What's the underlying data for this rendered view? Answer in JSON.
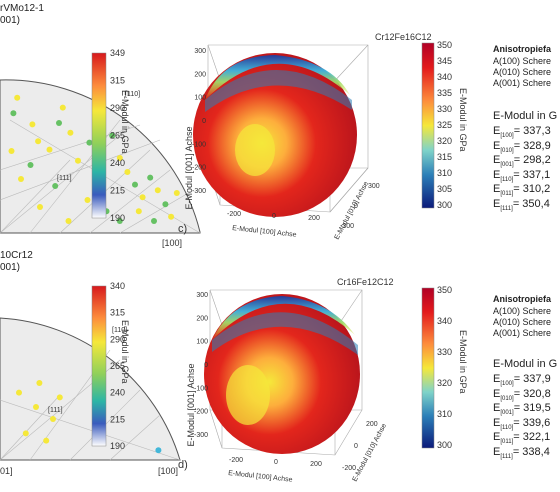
{
  "colors": {
    "red": "#d7191c",
    "orange": "#fdae61",
    "yellow": "#f5e83a",
    "green": "#66c164",
    "cyan": "#43b7d9",
    "blue": "#2b3aa8",
    "navy": "#141c7a",
    "gray": "#e9e9e9",
    "line": "#555555"
  },
  "chart_data": [
    {
      "type": "scatter",
      "panel": "top-left",
      "title_lines": [
        "rVMo12-1",
        "001)"
      ],
      "pole_labels": [
        "[110]",
        "[111]"
      ],
      "axis_labels": [
        "[100]"
      ],
      "colorbar": {
        "label": "E-Modul in GPa",
        "ticks": [
          349,
          315,
          290,
          265,
          240,
          215,
          190
        ],
        "range": [
          190,
          349
        ]
      },
      "points": [
        {
          "x": 0.06,
          "y": 0.82,
          "c": "green"
        },
        {
          "x": 0.08,
          "y": 0.93,
          "c": "yellow"
        },
        {
          "x": 0.16,
          "y": 0.74,
          "c": "yellow"
        },
        {
          "x": 0.19,
          "y": 0.62,
          "c": "yellow"
        },
        {
          "x": 0.25,
          "y": 0.56,
          "c": "yellow"
        },
        {
          "x": 0.32,
          "y": 0.86,
          "c": "yellow"
        },
        {
          "x": 0.36,
          "y": 0.68,
          "c": "yellow"
        },
        {
          "x": 0.4,
          "y": 0.48,
          "c": "yellow"
        },
        {
          "x": 0.46,
          "y": 0.61,
          "c": "green"
        },
        {
          "x": 0.52,
          "y": 0.77,
          "c": "green"
        },
        {
          "x": 0.58,
          "y": 0.66,
          "c": "green"
        },
        {
          "x": 0.62,
          "y": 0.5,
          "c": "yellow"
        },
        {
          "x": 0.66,
          "y": 0.4,
          "c": "yellow"
        },
        {
          "x": 0.7,
          "y": 0.31,
          "c": "green"
        },
        {
          "x": 0.74,
          "y": 0.22,
          "c": "yellow"
        },
        {
          "x": 0.78,
          "y": 0.36,
          "c": "green"
        },
        {
          "x": 0.82,
          "y": 0.27,
          "c": "yellow"
        },
        {
          "x": 0.86,
          "y": 0.17,
          "c": "green"
        },
        {
          "x": 0.89,
          "y": 0.08,
          "c": "yellow"
        },
        {
          "x": 0.92,
          "y": 0.25,
          "c": "yellow"
        },
        {
          "x": 0.1,
          "y": 0.35,
          "c": "yellow"
        },
        {
          "x": 0.28,
          "y": 0.3,
          "c": "green"
        },
        {
          "x": 0.45,
          "y": 0.2,
          "c": "yellow"
        },
        {
          "x": 0.55,
          "y": 0.12,
          "c": "green"
        },
        {
          "x": 0.2,
          "y": 0.15,
          "c": "yellow"
        },
        {
          "x": 0.35,
          "y": 0.05,
          "c": "yellow"
        },
        {
          "x": 0.62,
          "y": 0.05,
          "c": "green"
        },
        {
          "x": 0.15,
          "y": 0.45,
          "c": "green"
        },
        {
          "x": 0.5,
          "y": 0.35,
          "c": "yellow"
        },
        {
          "x": 0.72,
          "y": 0.12,
          "c": "yellow"
        },
        {
          "x": 0.8,
          "y": 0.05,
          "c": "green"
        },
        {
          "x": 0.05,
          "y": 0.55,
          "c": "yellow"
        },
        {
          "x": 0.3,
          "y": 0.75,
          "c": "green"
        }
      ]
    },
    {
      "type": "surface",
      "panel": "c",
      "title": "Cr12Fe16C12",
      "panel_label": "c)",
      "zlabel": "E-Modul [001] Achse",
      "xlabel": "E-Modul [100] Achse",
      "ylabel": "E-Modul [010] Achse",
      "z_ticks": [
        300,
        200,
        100,
        0,
        -100,
        -200,
        -300
      ],
      "x_ticks": [
        -200,
        0,
        200
      ],
      "y_ticks": [
        -300,
        0,
        300
      ],
      "colorbar": {
        "label": "E-Modul in GPa",
        "ticks": [
          350,
          345,
          340,
          335,
          330,
          325,
          320,
          315,
          310,
          305,
          300
        ],
        "range": [
          300,
          350
        ]
      }
    },
    {
      "type": "scatter",
      "panel": "bottom-left",
      "title_lines": [
        "10Cr12",
        "001)"
      ],
      "pole_labels": [
        "[110]",
        "[111]"
      ],
      "axis_labels": [
        "01]",
        "[100]"
      ],
      "colorbar": {
        "label": "E-Modul in GPa",
        "ticks": [
          340,
          315,
          290,
          265,
          240,
          215,
          190
        ],
        "range": [
          190,
          340
        ]
      },
      "points": [
        {
          "x": 0.14,
          "y": 0.18,
          "c": "yellow"
        },
        {
          "x": 0.2,
          "y": 0.4,
          "c": "yellow"
        },
        {
          "x": 0.26,
          "y": 0.12,
          "c": "yellow"
        },
        {
          "x": 0.3,
          "y": 0.3,
          "c": "yellow"
        },
        {
          "x": 0.34,
          "y": 0.48,
          "c": "yellow"
        },
        {
          "x": 0.22,
          "y": 0.6,
          "c": "yellow"
        },
        {
          "x": 0.1,
          "y": 0.52,
          "c": "yellow"
        },
        {
          "x": 0.92,
          "y": 0.04,
          "c": "cyan"
        }
      ]
    },
    {
      "type": "surface",
      "panel": "d",
      "title": "Cr16Fe12C12",
      "panel_label": "d)",
      "zlabel": "E-Modul [001] Achse",
      "xlabel": "E-Modul [100] Achse",
      "ylabel": "E-Modul [010] Achse",
      "z_ticks": [
        300,
        200,
        100,
        0,
        -100,
        -200,
        -300
      ],
      "x_ticks": [
        -200,
        0,
        200
      ],
      "y_ticks": [
        -200,
        0,
        200
      ],
      "colorbar": {
        "label": "E-Modul in GPa",
        "ticks": [
          350,
          340,
          330,
          320,
          310,
          300
        ],
        "range": [
          300,
          350
        ]
      }
    }
  ],
  "info_top": {
    "heading": "Anisotropiefa",
    "rows": [
      "A(100) Schere",
      "A(010) Schere",
      "A(001) Schere"
    ],
    "emod_heading": "E-Modul in G",
    "emod": [
      {
        "sub": "[100]",
        "val": "337,3"
      },
      {
        "sub": "[010]",
        "val": "328,9"
      },
      {
        "sub": "[001]",
        "val": "298,2"
      },
      {
        "sub": "[110]",
        "val": "337,1"
      },
      {
        "sub": "[011]",
        "val": "310,2"
      },
      {
        "sub": "[111]",
        "val": "350,4"
      }
    ]
  },
  "info_bottom": {
    "heading": "Anisotropiefa",
    "rows": [
      "A(100) Schere",
      "A(010) Schere",
      "A(001) Schere"
    ],
    "emod_heading": "E-Modul in G",
    "emod": [
      {
        "sub": "[100]",
        "val": "337,9"
      },
      {
        "sub": "[010]",
        "val": "320,8"
      },
      {
        "sub": "[001]",
        "val": "319,5"
      },
      {
        "sub": "[110]",
        "val": "339,6"
      },
      {
        "sub": "[011]",
        "val": "322,1"
      },
      {
        "sub": "[111]",
        "val": "338,4"
      }
    ]
  }
}
